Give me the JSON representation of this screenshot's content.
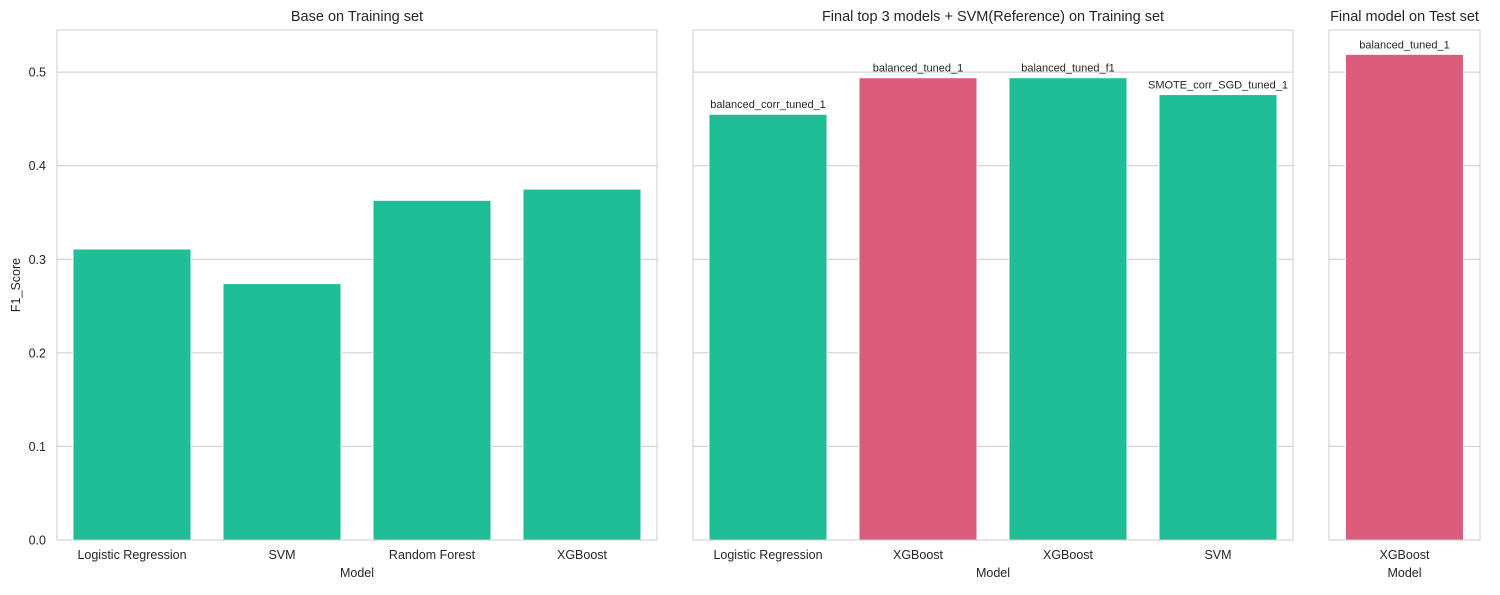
{
  "chart_data": [
    {
      "type": "bar",
      "title": "Base on Training set",
      "xlabel": "Model",
      "ylabel": "F1_Score",
      "ylim": [
        0,
        0.545
      ],
      "yticks": [
        "0.0",
        "0.1",
        "0.2",
        "0.3",
        "0.4",
        "0.5"
      ],
      "grid": "horizontal",
      "categories": [
        "Logistic Regression",
        "SVM",
        "Random Forest",
        "XGBoost"
      ],
      "values": [
        0.311,
        0.274,
        0.363,
        0.375
      ],
      "colors": [
        "#1fbd95",
        "#1fbd95",
        "#1fbd95",
        "#1fbd95"
      ],
      "bar_labels": []
    },
    {
      "type": "bar",
      "title": "Final top 3 models + SVM(Reference) on Training set",
      "xlabel": "Model",
      "ylabel": "",
      "ylim": [
        0,
        0.545
      ],
      "grid": "horizontal",
      "categories": [
        "Logistic Regression",
        "XGBoost",
        "XGBoost",
        "SVM"
      ],
      "values": [
        0.455,
        0.494,
        0.494,
        0.476
      ],
      "colors": [
        "#1fbd95",
        "#db5c7b",
        "#1fbd95",
        "#1fbd95"
      ],
      "bar_labels": [
        "balanced_corr_tuned_1",
        "balanced_tuned_1",
        "balanced_tuned_f1",
        "SMOTE_corr_SGD_tuned_1"
      ]
    },
    {
      "type": "bar",
      "title": "Final model on Test set",
      "xlabel": "Model",
      "ylabel": "",
      "ylim": [
        0,
        0.545
      ],
      "grid": "horizontal",
      "categories": [
        "XGBoost"
      ],
      "values": [
        0.519
      ],
      "colors": [
        "#db5c7b"
      ],
      "bar_labels": [
        "balanced_tuned_1"
      ]
    }
  ]
}
